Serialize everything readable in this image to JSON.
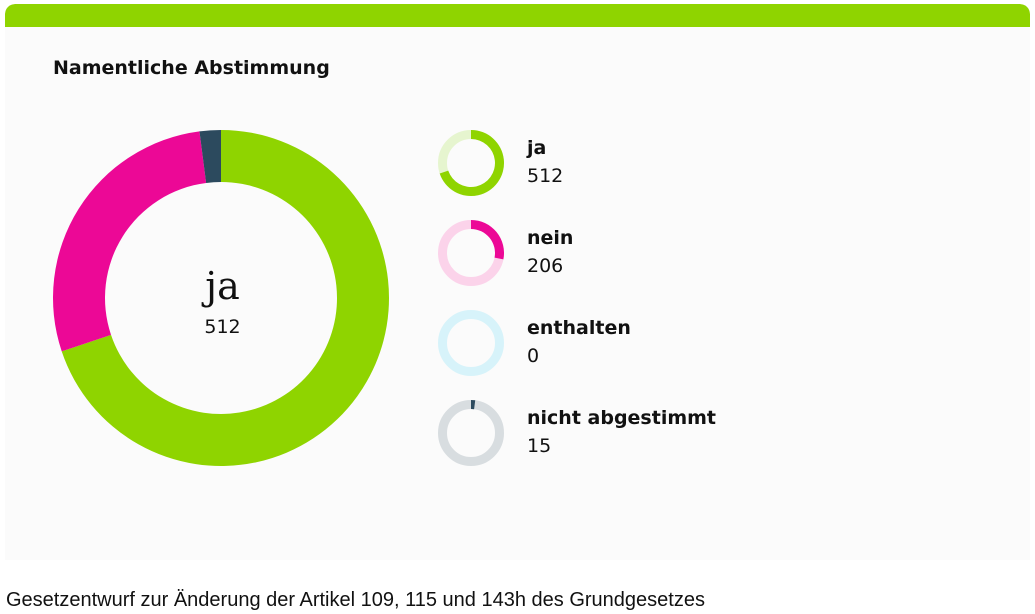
{
  "card": {
    "title": "Namentliche Abstimmung",
    "accent_color": "#8fd400"
  },
  "chart_data": {
    "type": "donut",
    "title": "Namentliche Abstimmung",
    "center": {
      "label": "ja",
      "value": "512"
    },
    "series": [
      {
        "name": "ja",
        "value": 512,
        "color": "#8fd400",
        "track_color": "#e6f5cf"
      },
      {
        "name": "nein",
        "value": 206,
        "color": "#ec0896",
        "track_color": "#fbd3ea"
      },
      {
        "name": "enthalten",
        "value": 0,
        "color": "#5fd0ea",
        "track_color": "#d7f3fa"
      },
      {
        "name": "nicht abgestimmt",
        "value": 15,
        "color": "#2c4a5e",
        "track_color": "#d8dde0"
      }
    ]
  },
  "caption": "Gesetzentwurf zur Änderung der Artikel 109, 115 und 143h des Grundgesetzes"
}
